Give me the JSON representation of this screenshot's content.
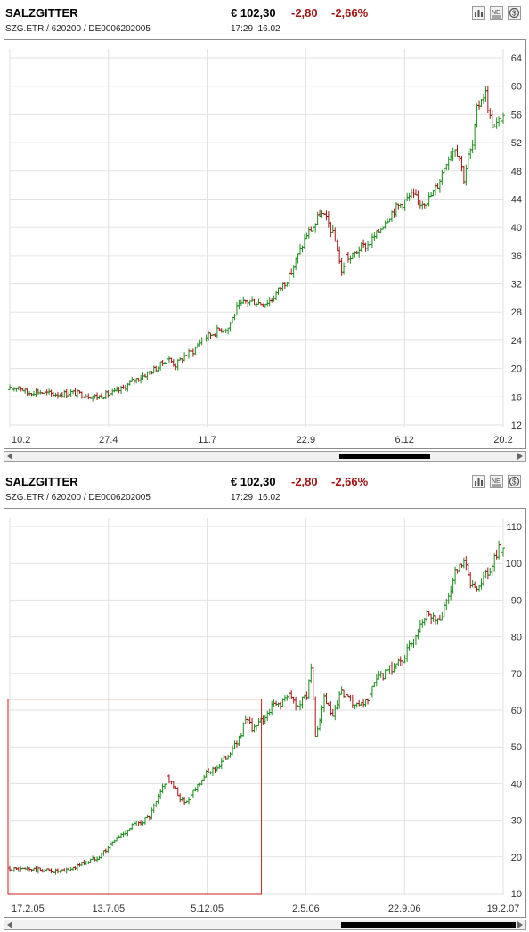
{
  "stock": {
    "name": "SALZGITTER",
    "identifiers": "SZG.ETR  /  620200  /  DE0006202005",
    "price": "€ 102,30",
    "change": "-2,80",
    "change_pct": "-2,66%",
    "time": "17:29",
    "date": "16.02"
  },
  "colors": {
    "up": "#1c8c1c",
    "down": "#a31313",
    "grid": "#e2e2e2",
    "highlight": "#cc2222"
  },
  "icons": [
    "bar-chart-icon",
    "news-icon",
    "currency-icon"
  ],
  "chart_data": [
    {
      "type": "ohlc",
      "y_axis_side": "right",
      "yticks": [
        12,
        16,
        20,
        24,
        28,
        32,
        36,
        40,
        44,
        48,
        52,
        56,
        60,
        64
      ],
      "ylim": [
        12,
        64
      ],
      "xticks": [
        "10.2",
        "27.4",
        "11.7",
        "22.9",
        "6.12",
        "20.2"
      ],
      "grid": true,
      "series": [
        {
          "values": [
            [
              0,
              17
            ],
            [
              10,
              17.5
            ],
            [
              20,
              16.5
            ],
            [
              30,
              16.8
            ],
            [
              40,
              16.5
            ],
            [
              50,
              16.4
            ],
            [
              60,
              16.4
            ],
            [
              70,
              16.6
            ],
            [
              80,
              16.4
            ],
            [
              90,
              16.2
            ],
            [
              100,
              16.0
            ],
            [
              110,
              16.3
            ],
            [
              120,
              16.6
            ],
            [
              130,
              17.2
            ],
            [
              140,
              18.2
            ],
            [
              150,
              18.8
            ],
            [
              160,
              19.5
            ],
            [
              170,
              20.2
            ],
            [
              180,
              21.5
            ],
            [
              190,
              20.5
            ],
            [
              200,
              21.8
            ],
            [
              210,
              22.5
            ],
            [
              220,
              24.2
            ],
            [
              230,
              24.8
            ],
            [
              240,
              25.5
            ],
            [
              250,
              25.8
            ],
            [
              260,
              28.5
            ],
            [
              270,
              29.5
            ],
            [
              280,
              29.5
            ],
            [
              290,
              29.2
            ],
            [
              300,
              29.8
            ],
            [
              310,
              31.5
            ],
            [
              320,
              33.0
            ],
            [
              330,
              36.0
            ],
            [
              340,
              39.0
            ],
            [
              350,
              40.5
            ],
            [
              355,
              42.0
            ],
            [
              360,
              41.5
            ],
            [
              365,
              40.5
            ],
            [
              370,
              39.0
            ],
            [
              375,
              37.0
            ],
            [
              380,
              33.5
            ],
            [
              385,
              36.0
            ],
            [
              390,
              35.5
            ],
            [
              400,
              37.0
            ],
            [
              410,
              37.5
            ],
            [
              420,
              39.0
            ],
            [
              430,
              41.0
            ],
            [
              440,
              42.5
            ],
            [
              450,
              43.5
            ],
            [
              460,
              44.5
            ],
            [
              470,
              43.5
            ],
            [
              480,
              44.0
            ],
            [
              490,
              46.0
            ],
            [
              500,
              49.5
            ],
            [
              510,
              51.5
            ],
            [
              515,
              50.0
            ],
            [
              520,
              47.0
            ],
            [
              525,
              50.0
            ],
            [
              530,
              51.5
            ],
            [
              535,
              56.5
            ],
            [
              540,
              58.5
            ],
            [
              545,
              59.0
            ],
            [
              550,
              55.5
            ],
            [
              555,
              54.0
            ],
            [
              560,
              55.0
            ],
            [
              565,
              56.0
            ]
          ]
        }
      ]
    },
    {
      "type": "ohlc",
      "y_axis_side": "right",
      "yticks": [
        10,
        20,
        30,
        40,
        50,
        60,
        70,
        80,
        90,
        100,
        110
      ],
      "ylim": [
        10,
        110
      ],
      "xticks": [
        "17.2.05",
        "13.7.05",
        "5.12.05",
        "2.5.06",
        "22.9.06",
        "19.2.07"
      ],
      "grid": true,
      "highlight_range": {
        "x_start": 0,
        "x_end": 280,
        "y_low": 10,
        "y_high": 63
      },
      "series": [
        {
          "values": [
            [
              0,
              17.0
            ],
            [
              10,
              16.5
            ],
            [
              20,
              16.8
            ],
            [
              30,
              16.5
            ],
            [
              40,
              16.5
            ],
            [
              50,
              16.2
            ],
            [
              60,
              16.0
            ],
            [
              70,
              16.8
            ],
            [
              80,
              18.0
            ],
            [
              90,
              18.8
            ],
            [
              100,
              20.0
            ],
            [
              110,
              22.0
            ],
            [
              120,
              24.5
            ],
            [
              130,
              26.5
            ],
            [
              140,
              28.5
            ],
            [
              150,
              29.5
            ],
            [
              160,
              31.0
            ],
            [
              170,
              36.0
            ],
            [
              180,
              42.0
            ],
            [
              190,
              38.0
            ],
            [
              200,
              34.5
            ],
            [
              210,
              38.0
            ],
            [
              220,
              41.5
            ],
            [
              230,
              43.5
            ],
            [
              240,
              45.0
            ],
            [
              250,
              48.0
            ],
            [
              260,
              51.0
            ],
            [
              270,
              57.0
            ],
            [
              280,
              55.0
            ],
            [
              290,
              57.5
            ],
            [
              300,
              61.0
            ],
            [
              310,
              62.0
            ],
            [
              320,
              64.0
            ],
            [
              330,
              61.0
            ],
            [
              340,
              64.5
            ],
            [
              345,
              72.0
            ],
            [
              350,
              52.0
            ],
            [
              360,
              63.0
            ],
            [
              370,
              58.0
            ],
            [
              380,
              65.0
            ],
            [
              390,
              62.0
            ],
            [
              400,
              60.5
            ],
            [
              410,
              63.0
            ],
            [
              420,
              68.0
            ],
            [
              430,
              70.0
            ],
            [
              440,
              72.0
            ],
            [
              450,
              74.0
            ],
            [
              460,
              78.0
            ],
            [
              470,
              84.0
            ],
            [
              480,
              87.0
            ],
            [
              490,
              84.0
            ],
            [
              500,
              89.0
            ],
            [
              510,
              97.0
            ],
            [
              520,
              100.0
            ],
            [
              530,
              93.0
            ],
            [
              540,
              95.0
            ],
            [
              550,
              98.0
            ],
            [
              560,
              104.0
            ]
          ]
        }
      ]
    }
  ]
}
